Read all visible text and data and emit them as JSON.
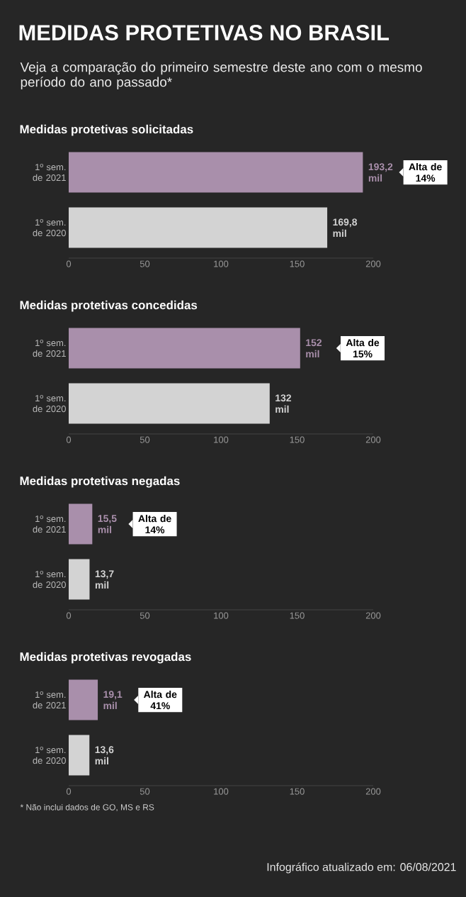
{
  "chart_data": [
    {
      "type": "other",
      "title": "MEDIDAS PROTETIVAS NO BRASIL",
      "subtitle": "Veja a comparação do primeiro semestre deste ano com o mesmo período do ano passado*"
    },
    {
      "type": "bar",
      "orientation": "horizontal",
      "title": "Medidas protetivas solicitadas",
      "categories": [
        "1º sem. de 2021",
        "1º sem. de 2020"
      ],
      "values": [
        193.2,
        169.8
      ],
      "colors": [
        "#a98fab",
        "#d3d3d3"
      ],
      "value_labels": [
        "193,2 mil",
        "169,8 mil"
      ],
      "xlim": [
        0,
        200
      ],
      "xticks": [
        0,
        50,
        100,
        150,
        200
      ],
      "annotations": [
        "Alta de 14%"
      ]
    },
    {
      "type": "bar",
      "orientation": "horizontal",
      "title": "Medidas protetivas concedidas",
      "categories": [
        "1º sem. de 2021",
        "1º sem. de 2020"
      ],
      "values": [
        152,
        132
      ],
      "colors": [
        "#a98fab",
        "#d3d3d3"
      ],
      "value_labels": [
        "152 mil",
        "132 mil"
      ],
      "xlim": [
        0,
        200
      ],
      "xticks": [
        0,
        50,
        100,
        150,
        200
      ],
      "annotations": [
        "Alta de 15%"
      ]
    },
    {
      "type": "bar",
      "orientation": "horizontal",
      "title": "Medidas protetivas negadas",
      "categories": [
        "1º sem. de 2021",
        "1º sem. de 2020"
      ],
      "values": [
        15.5,
        13.7
      ],
      "colors": [
        "#a98fab",
        "#d3d3d3"
      ],
      "value_labels": [
        "15,5 mil",
        "13,7 mil"
      ],
      "xlim": [
        0,
        200
      ],
      "xticks": [
        0,
        50,
        100,
        150,
        200
      ],
      "annotations": [
        "Alta de 14%"
      ]
    },
    {
      "type": "bar",
      "orientation": "horizontal",
      "title": "Medidas protetivas revogadas",
      "categories": [
        "1º sem. de 2021",
        "1º sem. de 2020"
      ],
      "values": [
        19.1,
        13.6
      ],
      "colors": [
        "#a98fab",
        "#d3d3d3"
      ],
      "value_labels": [
        "19,1 mil",
        "13,6 mil"
      ],
      "xlim": [
        0,
        200
      ],
      "xticks": [
        0,
        50,
        100,
        150,
        200
      ],
      "annotations": [
        "Alta de 41%",
        "* Não inclui dados de GO, MS e RS",
        "Infográfico atualizado em: 06/08/2021"
      ]
    }
  ]
}
